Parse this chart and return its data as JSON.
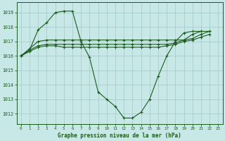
{
  "title": "Graphe pression niveau de la mer (hPa)",
  "bg_color": "#c8e8e8",
  "grid_color": "#a0c8c8",
  "line_color": "#1a5c1a",
  "x_ticks": [
    0,
    1,
    2,
    3,
    4,
    5,
    6,
    7,
    8,
    9,
    10,
    11,
    12,
    13,
    14,
    15,
    16,
    17,
    18,
    19,
    20,
    21,
    22,
    23
  ],
  "y_ticks": [
    1012,
    1013,
    1014,
    1015,
    1016,
    1017,
    1018,
    1019
  ],
  "ylim": [
    1011.3,
    1019.7
  ],
  "xlim": [
    -0.5,
    23.5
  ],
  "series": [
    {
      "x": [
        0,
        1,
        2,
        3,
        4,
        5,
        6,
        7,
        8,
        9,
        10,
        11,
        12,
        13,
        14,
        15,
        16,
        17,
        18,
        19,
        20,
        21,
        22,
        23
      ],
      "y": [
        1016.0,
        1016.4,
        1017.8,
        1018.3,
        1019.0,
        1019.1,
        1019.1,
        1017.0,
        1015.9,
        1013.5,
        1013.0,
        1012.5,
        1011.7,
        1011.7,
        1012.1,
        1013.0,
        1014.6,
        1016.0,
        1017.0,
        1017.6,
        1017.7,
        1017.7,
        null,
        null
      ]
    },
    {
      "x": [
        0,
        1,
        2,
        3,
        4,
        5,
        6,
        7,
        8,
        9,
        10,
        11,
        12,
        13,
        14,
        15,
        16,
        17,
        18,
        19,
        20,
        21,
        22,
        23
      ],
      "y": [
        1016.0,
        1016.5,
        1017.0,
        1017.1,
        1017.1,
        1017.1,
        1017.1,
        1017.1,
        1017.1,
        1017.1,
        1017.1,
        1017.1,
        1017.1,
        1017.1,
        1017.1,
        1017.1,
        1017.1,
        1017.1,
        1017.1,
        1017.1,
        1017.5,
        1017.7,
        1017.7,
        null
      ]
    },
    {
      "x": [
        0,
        1,
        2,
        3,
        4,
        5,
        6,
        7,
        8,
        9,
        10,
        11,
        12,
        13,
        14,
        15,
        16,
        17,
        18,
        19,
        20,
        21,
        22,
        23
      ],
      "y": [
        1016.0,
        1016.4,
        1016.7,
        1016.8,
        1016.8,
        1016.8,
        1016.8,
        1016.8,
        1016.8,
        1016.8,
        1016.8,
        1016.8,
        1016.8,
        1016.8,
        1016.8,
        1016.8,
        1016.8,
        1016.8,
        1016.9,
        1017.1,
        1017.2,
        1017.5,
        1017.7,
        null
      ]
    },
    {
      "x": [
        0,
        1,
        2,
        3,
        4,
        5,
        6,
        7,
        8,
        9,
        10,
        11,
        12,
        13,
        14,
        15,
        16,
        17,
        18,
        19,
        20,
        21,
        22,
        23
      ],
      "y": [
        1016.0,
        1016.3,
        1016.6,
        1016.7,
        1016.7,
        1016.6,
        1016.6,
        1016.6,
        1016.6,
        1016.6,
        1016.6,
        1016.6,
        1016.6,
        1016.6,
        1016.6,
        1016.6,
        1016.6,
        1016.7,
        1016.8,
        1017.0,
        1017.1,
        1017.3,
        1017.5,
        null
      ]
    }
  ]
}
